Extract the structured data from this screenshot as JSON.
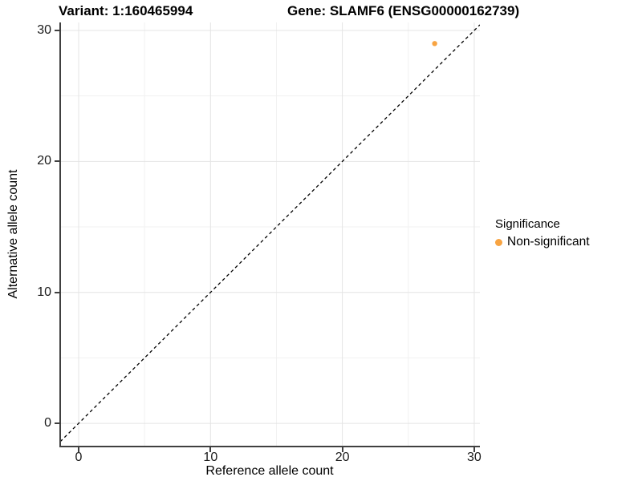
{
  "title": {
    "variant": "Variant: 1:160465994",
    "gene": "Gene: SLAMF6 (ENSG00000162739)"
  },
  "chart_data": {
    "type": "scatter",
    "xlabel": "Reference allele count",
    "ylabel": "Alternative allele count",
    "xticks": [
      0,
      10,
      20,
      30
    ],
    "yticks": [
      0,
      10,
      20,
      30
    ],
    "minor_xticks": [
      5,
      15,
      25
    ],
    "minor_yticks": [
      5,
      15,
      25
    ],
    "xlim": [
      -1.4,
      30.43
    ],
    "ylim": [
      -1.71,
      30.61
    ],
    "grid": true,
    "points": [
      {
        "x": 27,
        "y": 29,
        "series": "Non-significant"
      }
    ],
    "reference_line": {
      "slope": 1,
      "intercept": 0,
      "style": "dashed",
      "color": "#000000"
    },
    "legend": {
      "title": "Significance",
      "position": "right",
      "items": [
        {
          "label": "Non-significant",
          "color": "#F8A442"
        }
      ]
    }
  },
  "colors": {
    "point": "#F8A442",
    "major_grid": "#e4e4e4",
    "minor_grid": "#f1f1f1",
    "axis_line": "#404040",
    "dashed_line": "#000000"
  }
}
